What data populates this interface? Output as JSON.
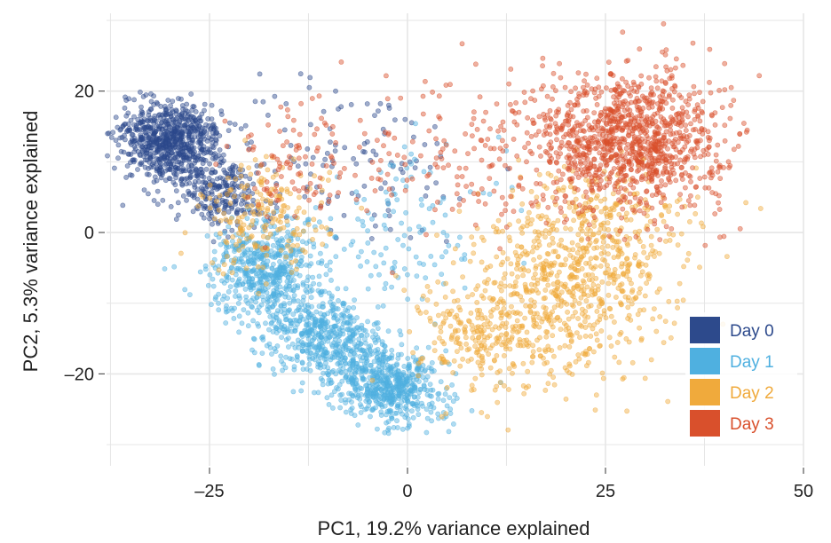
{
  "chart_data": {
    "type": "scatter",
    "title": "",
    "xlabel": "PC1, 19.2% variance explained",
    "ylabel": "PC2, 5.3% variance explained",
    "xlim": [
      -38,
      50
    ],
    "ylim": [
      -33,
      31
    ],
    "x_ticks": [
      -25,
      0,
      25,
      50
    ],
    "x_tick_labels": [
      "–25",
      "0",
      "25",
      "50"
    ],
    "y_ticks": [
      20,
      0,
      -20
    ],
    "y_tick_labels": [
      "20",
      "0",
      "–20"
    ],
    "grid": true,
    "legend_position": "bottom-right",
    "series": [
      {
        "name": "Day 0",
        "color": "#2d4a8c",
        "clusters": [
          {
            "center": [
              -30,
              13
            ],
            "spread": [
              3.0,
              2.8
            ],
            "points": 700,
            "rotation_deg": -25
          },
          {
            "center": [
              -24,
              6
            ],
            "spread": [
              3.5,
              2.5
            ],
            "points": 260,
            "rotation_deg": -30
          },
          {
            "center": [
              -8,
              10
            ],
            "spread": [
              9.0,
              6.0
            ],
            "points": 120,
            "rotation_deg": 0
          }
        ]
      },
      {
        "name": "Day 1",
        "color": "#4fb0e0",
        "clusters": [
          {
            "center": [
              -18,
              -5
            ],
            "spread": [
              3.2,
              3.5
            ],
            "points": 500,
            "rotation_deg": -35
          },
          {
            "center": [
              -10,
              -15
            ],
            "spread": [
              4.5,
              3.0
            ],
            "points": 600,
            "rotation_deg": -33
          },
          {
            "center": [
              -2,
              -22
            ],
            "spread": [
              3.5,
              2.5
            ],
            "points": 500,
            "rotation_deg": -20
          },
          {
            "center": [
              0,
              0
            ],
            "spread": [
              6.0,
              6.0
            ],
            "points": 120,
            "rotation_deg": 0
          }
        ]
      },
      {
        "name": "Day 2",
        "color": "#f0aa3c",
        "clusters": [
          {
            "center": [
              20,
              -8
            ],
            "spread": [
              6.5,
              5.5
            ],
            "points": 650,
            "rotation_deg": 20
          },
          {
            "center": [
              10,
              -15
            ],
            "spread": [
              4.0,
              4.0
            ],
            "points": 220,
            "rotation_deg": 0
          },
          {
            "center": [
              -18,
              2
            ],
            "spread": [
              4.0,
              4.0
            ],
            "points": 200,
            "rotation_deg": 0
          },
          {
            "center": [
              25,
              2
            ],
            "spread": [
              6.0,
              4.0
            ],
            "points": 200,
            "rotation_deg": 0
          }
        ]
      },
      {
        "name": "Day 3",
        "color": "#d9502c",
        "clusters": [
          {
            "center": [
              28,
              13
            ],
            "spread": [
              6.0,
              5.0
            ],
            "points": 1100,
            "rotation_deg": 0
          },
          {
            "center": [
              5,
              12
            ],
            "spread": [
              10.0,
              5.0
            ],
            "points": 160,
            "rotation_deg": 0
          },
          {
            "center": [
              -15,
              10
            ],
            "spread": [
              4.0,
              4.0
            ],
            "points": 80,
            "rotation_deg": 0
          }
        ]
      }
    ]
  }
}
